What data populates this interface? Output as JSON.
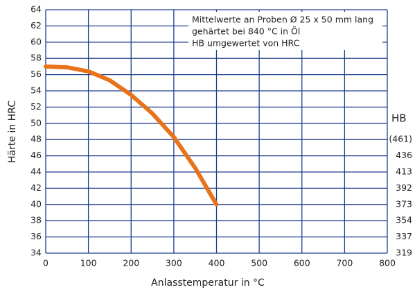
{
  "chart_data": {
    "type": "line",
    "x_label": "Anlasstemperatur in °C",
    "y_label": "Härte in HRC",
    "annotation": [
      "Mittelwerte an Proben Ø 25 x 50 mm lang",
      "gehärtet bei 840 °C in Öl",
      "HB umgewertet von HRC"
    ],
    "x": [
      0,
      50,
      100,
      150,
      200,
      250,
      300,
      350,
      400
    ],
    "series": [
      {
        "name": "Härte",
        "color": "#e8731a",
        "values": [
          57.0,
          56.9,
          56.4,
          55.3,
          53.5,
          51.2,
          48.3,
          44.5,
          40.0
        ]
      }
    ],
    "xlim": [
      0,
      800
    ],
    "xticks": [
      0,
      100,
      200,
      300,
      400,
      500,
      600,
      700,
      800
    ],
    "ylim": [
      34,
      64
    ],
    "yticks": [
      34,
      36,
      38,
      40,
      42,
      44,
      46,
      48,
      50,
      52,
      54,
      56,
      58,
      60,
      62,
      64
    ],
    "hb_title": "HB",
    "hb_ticks": [
      {
        "value": 48,
        "label": "(461)"
      },
      {
        "value": 46,
        "label": "436"
      },
      {
        "value": 44,
        "label": "413"
      },
      {
        "value": 42,
        "label": "392"
      },
      {
        "value": 40,
        "label": "373"
      },
      {
        "value": 38,
        "label": "354"
      },
      {
        "value": 36,
        "label": "337"
      },
      {
        "value": 34,
        "label": "319"
      }
    ],
    "grid": true
  }
}
